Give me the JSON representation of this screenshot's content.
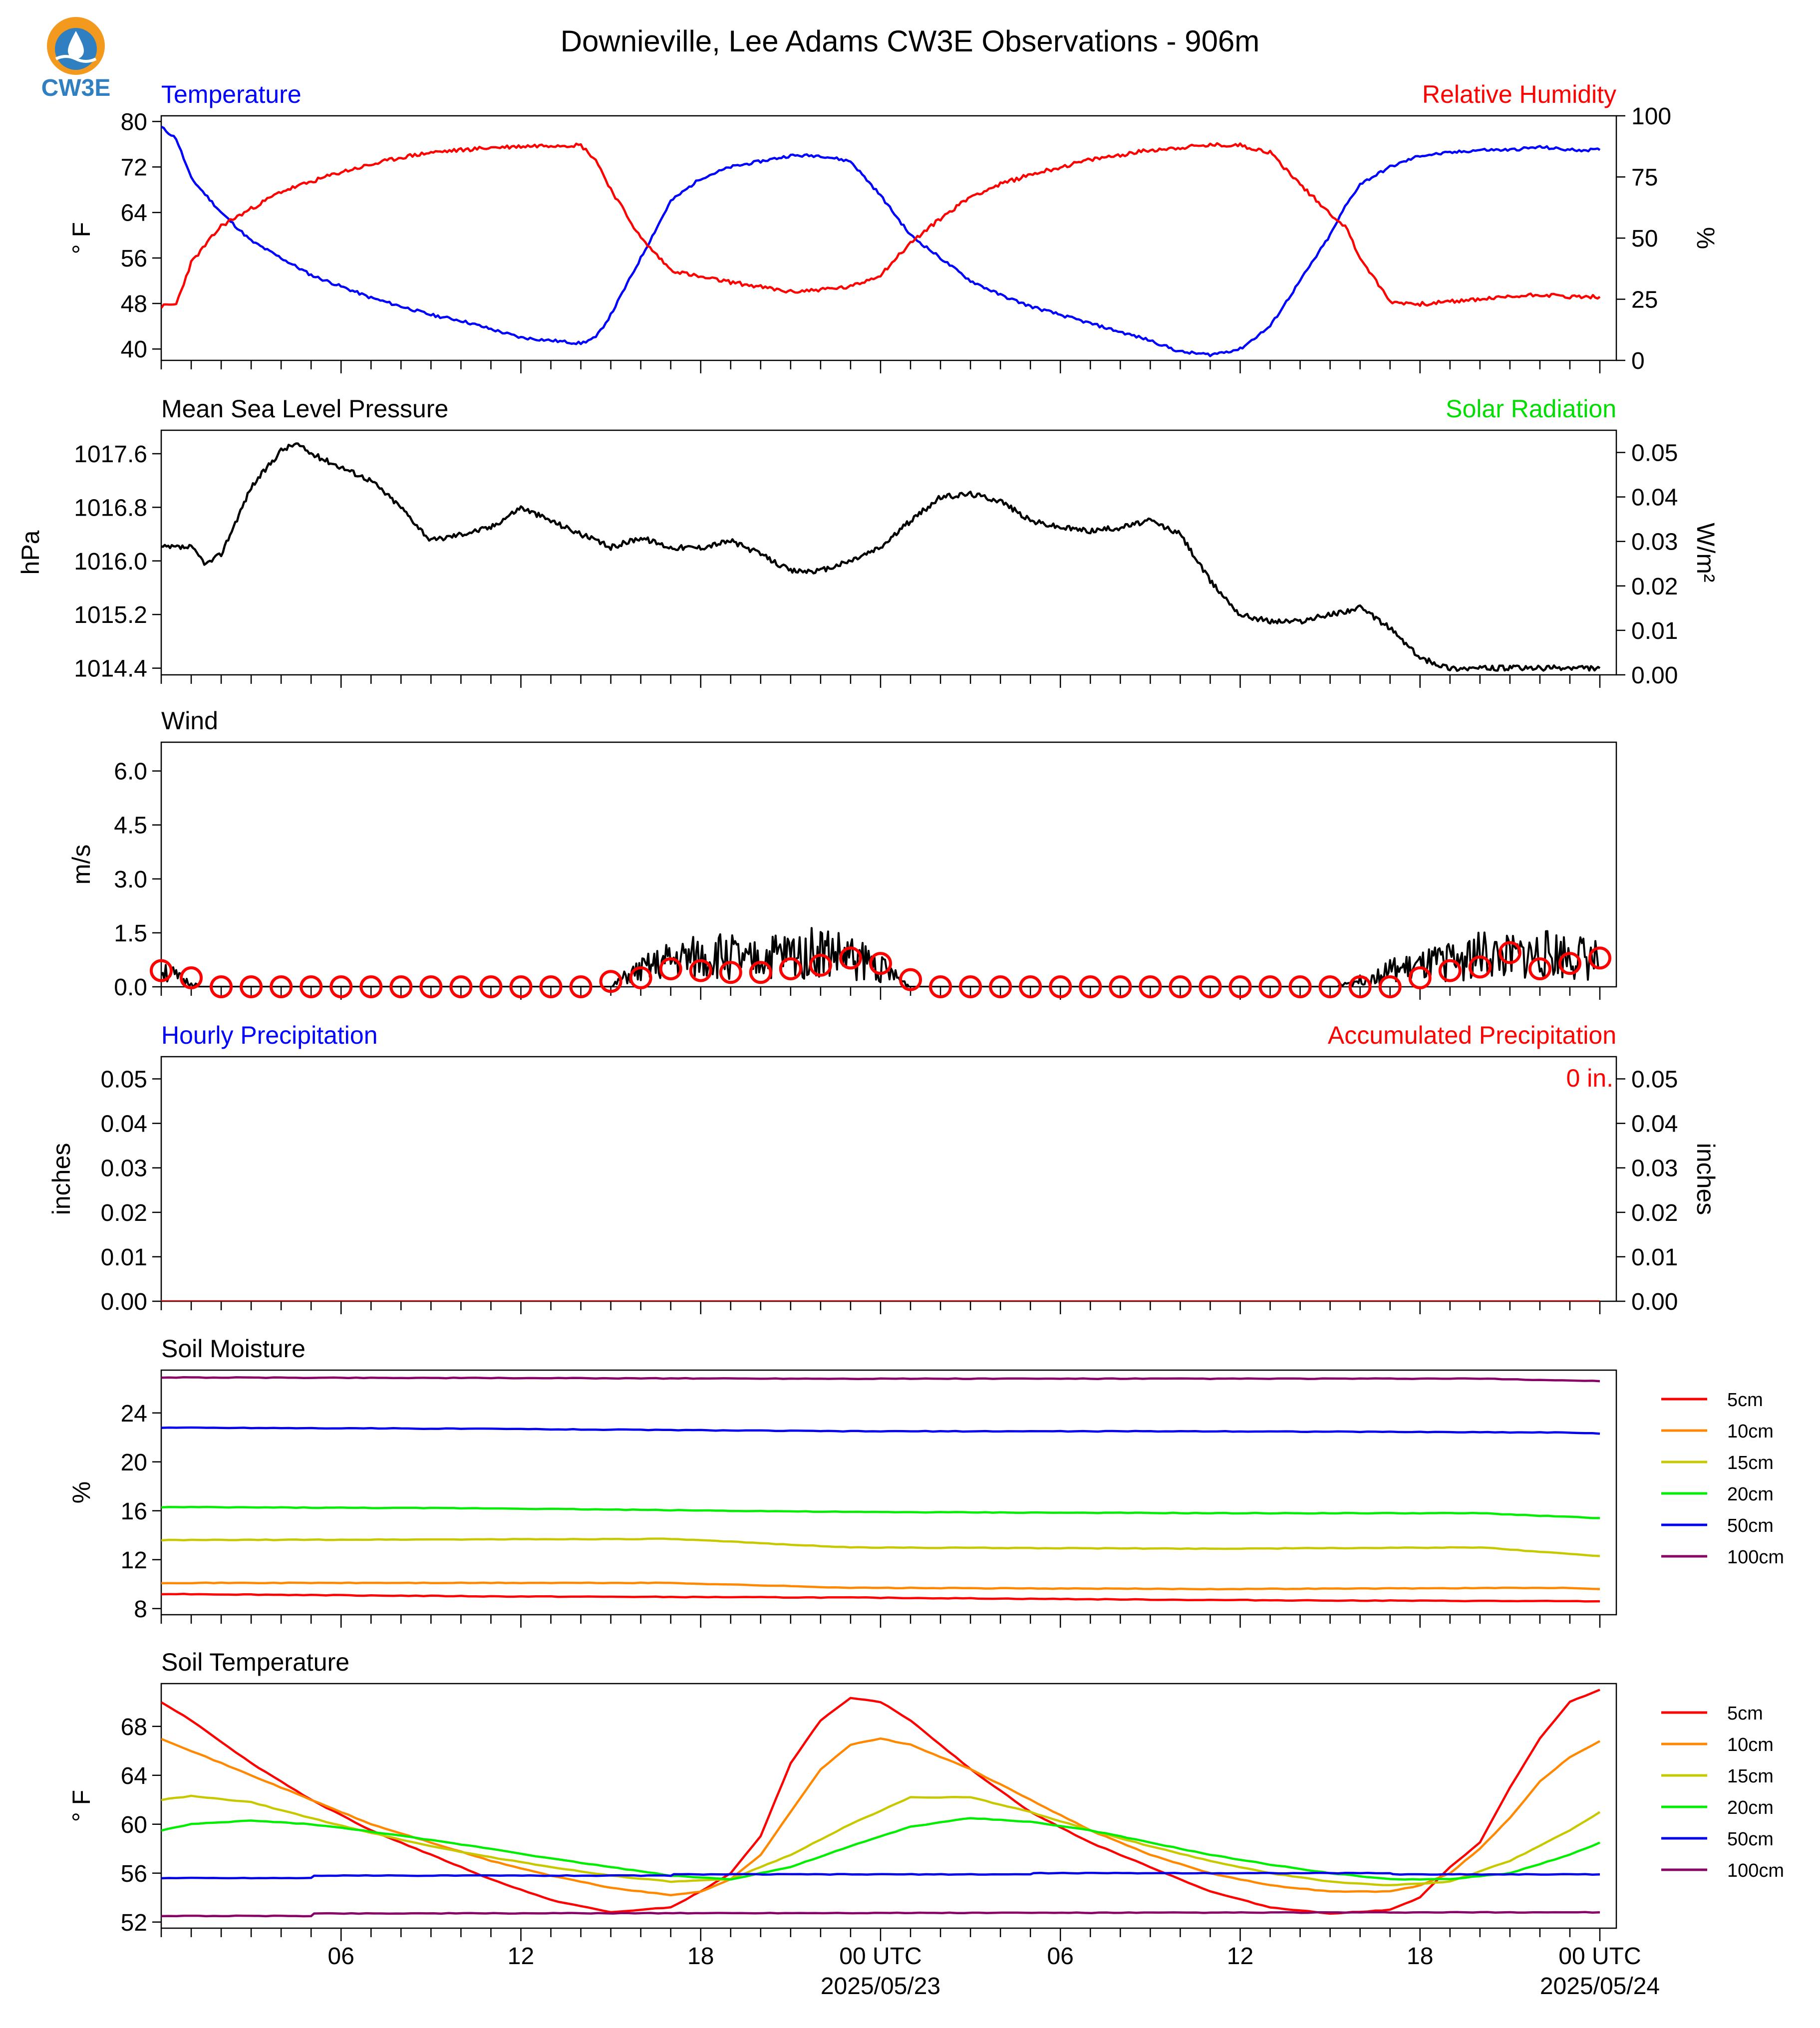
{
  "figure": {
    "title": "Downieville, Lee Adams CW3E Observations - 906m",
    "logo_text": "CW3E",
    "x_ticks": [
      "06",
      "12",
      "18",
      "00 UTC",
      "06",
      "12",
      "18",
      "00 UTC"
    ],
    "x_dates": [
      "2025/05/23",
      "2025/05/24"
    ]
  },
  "colors": {
    "temperature": "#0000ff",
    "humidity": "#ff0000",
    "pressure": "#000000",
    "solar": "#00dd00",
    "wind_gust_marker": "#ff0000",
    "soil": [
      "#ff0000",
      "#ff8800",
      "#c8c800",
      "#00ee00",
      "#0000ee",
      "#880066"
    ]
  },
  "chart_data": [
    {
      "type": "line",
      "left_title": "Temperature",
      "right_title": "Relative Humidity",
      "ylabel": "° F",
      "ylabel2": "%",
      "ylim": [
        38,
        81
      ],
      "yticks": [
        40,
        48,
        56,
        64,
        72,
        80
      ],
      "ylim2": [
        0,
        100
      ],
      "yticks2": [
        0,
        25,
        50,
        75,
        100
      ],
      "x_hours_range": [
        1,
        49
      ],
      "series": [
        {
          "name": "Temperature",
          "axis": "left",
          "x": [
            1,
            1.5,
            2,
            3,
            4,
            5,
            6,
            7,
            8,
            9,
            10,
            11,
            12,
            13,
            14,
            15,
            15.5,
            16,
            17,
            18,
            19,
            20,
            21,
            22,
            23,
            24,
            25,
            26,
            27,
            28,
            29,
            30,
            31,
            32,
            33,
            34,
            35,
            36,
            37,
            38,
            39,
            40,
            40.5,
            41,
            42,
            43,
            44,
            45,
            46,
            47,
            48,
            49
          ],
          "y": [
            79,
            77,
            70,
            64,
            59,
            56,
            53,
            51,
            49,
            47.5,
            46,
            45,
            43.5,
            42,
            41.5,
            41,
            42,
            46,
            56,
            66,
            70,
            72,
            73,
            74,
            74,
            73,
            67,
            60,
            56,
            52,
            49.5,
            47.5,
            46,
            44.5,
            43,
            41.5,
            39.5,
            39,
            40,
            44,
            52,
            60,
            65,
            69,
            72,
            74,
            74.5,
            75,
            75,
            75.5,
            75,
            75
          ]
        },
        {
          "name": "Relative Humidity",
          "axis": "right",
          "x": [
            1,
            1.5,
            2,
            3,
            4,
            5,
            6,
            7,
            8,
            9,
            10,
            11,
            12,
            13,
            14,
            15,
            15.5,
            16,
            17,
            18,
            19,
            20,
            21,
            22,
            23,
            24,
            25,
            26,
            27,
            28,
            29,
            30,
            31,
            32,
            33,
            34,
            35,
            36,
            37,
            38,
            39,
            40,
            40.5,
            41,
            42,
            43,
            44,
            45,
            46,
            47,
            48,
            49
          ],
          "y": [
            22,
            23,
            40,
            55,
            62,
            69,
            73,
            77,
            80,
            83,
            85,
            86,
            87,
            87.5,
            88,
            88,
            82,
            70,
            50,
            37,
            34,
            32,
            30,
            28,
            29,
            30,
            35,
            48,
            58,
            67,
            72,
            76,
            79,
            82,
            84,
            86,
            87,
            88,
            88,
            85,
            72,
            60,
            55,
            42,
            24,
            23,
            24,
            25,
            26,
            27,
            26,
            26
          ]
        }
      ]
    },
    {
      "type": "line",
      "left_title": "Mean Sea Level Pressure",
      "right_title": "Solar Radiation",
      "ylabel": "hPa",
      "ylabel2": "W/m²",
      "ylim": [
        1014.3,
        1017.95
      ],
      "yticks": [
        1014.4,
        1015.2,
        1016.0,
        1016.8,
        1017.6
      ],
      "ylim2": [
        0,
        0.055
      ],
      "yticks2": [
        0.0,
        0.01,
        0.02,
        0.03,
        0.04,
        0.05
      ],
      "series": [
        {
          "name": "Mean Sea Level Pressure",
          "axis": "left",
          "x": [
            1,
            2,
            2.5,
            3,
            4,
            5,
            5.5,
            6,
            7,
            8,
            9,
            10,
            11,
            12,
            13,
            14,
            15,
            16,
            17,
            18,
            19,
            20,
            21,
            22,
            23,
            24,
            25,
            26,
            27,
            28,
            29,
            30,
            31,
            32,
            33,
            34,
            35,
            36,
            37,
            38,
            39,
            40,
            41,
            42,
            43,
            44,
            45,
            46,
            47,
            48,
            49
          ],
          "y": [
            1016.2,
            1016.2,
            1015.95,
            1016.1,
            1017.1,
            1017.65,
            1017.75,
            1017.6,
            1017.4,
            1017.2,
            1016.8,
            1016.3,
            1016.4,
            1016.5,
            1016.8,
            1016.6,
            1016.4,
            1016.2,
            1016.35,
            1016.2,
            1016.2,
            1016.3,
            1016.1,
            1015.85,
            1015.85,
            1016.0,
            1016.2,
            1016.6,
            1016.95,
            1017.0,
            1016.9,
            1016.6,
            1016.5,
            1016.45,
            1016.5,
            1016.6,
            1016.4,
            1015.7,
            1015.2,
            1015.1,
            1015.1,
            1015.2,
            1015.3,
            1015.0,
            1014.55,
            1014.4,
            1014.4,
            1014.4,
            1014.4,
            1014.4,
            1014.4
          ]
        }
      ]
    },
    {
      "type": "line",
      "left_title": "Wind",
      "ylabel": "m/s",
      "ylim": [
        0,
        6.8
      ],
      "yticks": [
        0.0,
        1.5,
        3.0,
        4.5,
        6.0
      ],
      "series": [
        {
          "name": "Wind speed",
          "x": [
            1,
            1.5,
            2,
            2.5,
            3,
            4,
            5,
            6,
            7,
            8,
            9,
            10,
            11,
            12,
            13,
            14,
            15,
            16,
            16.5,
            17,
            18,
            19,
            20,
            20.5,
            21,
            22,
            23,
            24,
            24.5,
            25,
            25.5,
            26,
            27,
            28,
            29,
            30,
            31,
            32,
            33,
            34,
            35,
            36,
            37,
            38,
            39,
            40,
            41,
            42,
            43,
            44,
            45,
            46,
            47,
            48,
            49
          ],
          "y": [
            0.6,
            0.3,
            0.1,
            0.0,
            0.0,
            0,
            0,
            0,
            0,
            0,
            0,
            0,
            0,
            0,
            0,
            0,
            0,
            0,
            0.3,
            0.5,
            0.8,
            0.9,
            1.0,
            0.7,
            0.9,
            1.0,
            1.1,
            0.9,
            0.8,
            0.6,
            0.3,
            0,
            0,
            0,
            0,
            0,
            0,
            0,
            0,
            0,
            0,
            0,
            0,
            0,
            0,
            0,
            0.2,
            0.5,
            0.6,
            0.8,
            1.0,
            0.9,
            1.0,
            1.0,
            0.8
          ]
        },
        {
          "name": "Gust",
          "x": [
            1,
            2,
            3,
            4,
            5,
            6,
            7,
            8,
            9,
            10,
            11,
            12,
            13,
            14,
            15,
            16,
            17,
            18,
            19,
            20,
            21,
            22,
            23,
            24,
            25,
            26,
            27,
            28,
            29,
            30,
            31,
            32,
            33,
            34,
            35,
            36,
            37,
            38,
            39,
            40,
            41,
            42,
            43,
            44,
            45,
            46,
            47,
            48,
            49
          ],
          "y": [
            0.45,
            0.25,
            0,
            0,
            0,
            0,
            0,
            0,
            0,
            0,
            0,
            0,
            0,
            0,
            0,
            0.15,
            0.25,
            0.5,
            0.45,
            0.4,
            0.4,
            0.5,
            0.6,
            0.8,
            0.65,
            0.2,
            0,
            0,
            0,
            0,
            0,
            0,
            0,
            0,
            0,
            0,
            0,
            0,
            0,
            0,
            0,
            0,
            0.25,
            0.45,
            0.55,
            0.95,
            0.5,
            0.65,
            0.8
          ]
        }
      ]
    },
    {
      "type": "line",
      "left_title": "Hourly Precipitation",
      "right_title": "Accumulated Precipitation",
      "ylabel": "inches",
      "ylabel2": "inches",
      "ylim": [
        0,
        0.055
      ],
      "yticks": [
        0.0,
        0.01,
        0.02,
        0.03,
        0.04,
        0.05
      ],
      "annotation": "0 in.",
      "series": [
        {
          "name": "Hourly Precipitation",
          "x": [
            1,
            49
          ],
          "y": [
            0,
            0
          ]
        },
        {
          "name": "Accumulated Precipitation",
          "x": [
            1,
            49
          ],
          "y": [
            0,
            0
          ]
        }
      ]
    },
    {
      "type": "line",
      "left_title": "Soil Moisture",
      "ylabel": "%",
      "ylim": [
        7.5,
        27.5
      ],
      "yticks": [
        8,
        12,
        16,
        20,
        24
      ],
      "legend": "right",
      "series": [
        {
          "name": "5cm",
          "x": [
            1,
            12,
            24,
            36,
            48,
            49
          ],
          "y": [
            9.2,
            9.0,
            8.9,
            8.7,
            8.6,
            8.6
          ]
        },
        {
          "name": "10cm",
          "x": [
            1,
            18,
            24,
            36,
            48,
            49
          ],
          "y": [
            10.1,
            10.1,
            9.7,
            9.6,
            9.7,
            9.6
          ]
        },
        {
          "name": "15cm",
          "x": [
            1,
            18,
            24,
            36,
            45,
            49
          ],
          "y": [
            13.6,
            13.7,
            13.0,
            12.9,
            13.0,
            12.3
          ]
        },
        {
          "name": "20cm",
          "x": [
            1,
            12,
            24,
            36,
            45,
            49
          ],
          "y": [
            16.3,
            16.2,
            15.9,
            15.8,
            15.8,
            15.4
          ]
        },
        {
          "name": "50cm",
          "x": [
            1,
            12,
            24,
            36,
            48,
            49
          ],
          "y": [
            22.8,
            22.7,
            22.5,
            22.5,
            22.4,
            22.3
          ]
        },
        {
          "name": "100cm",
          "x": [
            1,
            24,
            45,
            49
          ],
          "y": [
            26.9,
            26.8,
            26.8,
            26.6
          ]
        }
      ]
    },
    {
      "type": "line",
      "left_title": "Soil Temperature",
      "ylabel": "° F",
      "ylim": [
        51.5,
        71.5
      ],
      "yticks": [
        52,
        56,
        60,
        64,
        68
      ],
      "legend": "right",
      "series": [
        {
          "name": "5cm",
          "x": [
            1,
            2,
            4,
            6,
            8,
            10,
            12,
            14,
            16,
            18,
            19,
            20,
            21,
            22,
            23,
            24,
            25,
            26,
            28,
            30,
            32,
            34,
            36,
            38,
            40,
            42,
            43,
            44,
            45,
            46,
            47,
            48,
            49
          ],
          "y": [
            70,
            68.5,
            65,
            62,
            59.5,
            57.5,
            55.5,
            53.8,
            52.8,
            53.2,
            54.5,
            56,
            59,
            65,
            68.5,
            70.3,
            70,
            68.5,
            64.5,
            61,
            58.5,
            56.5,
            54.5,
            53.2,
            52.7,
            53,
            54,
            56.5,
            58.5,
            63,
            67,
            70,
            71
          ]
        },
        {
          "name": "10cm",
          "x": [
            1,
            2,
            4,
            6,
            8,
            10,
            12,
            14,
            16,
            18,
            19,
            20,
            21,
            22,
            23,
            24,
            25,
            26,
            28,
            30,
            32,
            34,
            36,
            38,
            40,
            42,
            43,
            44,
            45,
            46,
            47,
            48,
            49
          ],
          "y": [
            67,
            66,
            64,
            62,
            60,
            58.5,
            57,
            55.8,
            54.8,
            54.2,
            54.5,
            55.5,
            57.5,
            61,
            64.5,
            66.5,
            67,
            66.5,
            64.5,
            62,
            59.5,
            57.5,
            56,
            55,
            54.5,
            54.5,
            55,
            56,
            58,
            60.5,
            63.5,
            65.5,
            66.8
          ]
        },
        {
          "name": "15cm",
          "x": [
            1,
            2,
            4,
            6,
            8,
            10,
            12,
            14,
            16,
            18,
            20,
            22,
            24,
            26,
            28,
            30,
            32,
            34,
            36,
            38,
            40,
            42,
            44,
            46,
            48,
            49
          ],
          "y": [
            62,
            62.3,
            61.8,
            60.5,
            59.3,
            58.2,
            57.3,
            56.5,
            55.8,
            55.3,
            55.5,
            57.5,
            60,
            62.2,
            62.2,
            61,
            59.5,
            58.2,
            57,
            56,
            55.3,
            55,
            55.3,
            57,
            59.5,
            61
          ]
        },
        {
          "name": "20cm",
          "x": [
            1,
            2,
            4,
            6,
            8,
            10,
            12,
            14,
            16,
            18,
            20,
            22,
            24,
            26,
            28,
            30,
            32,
            34,
            36,
            38,
            40,
            42,
            44,
            46,
            48,
            49
          ],
          "y": [
            59.5,
            60,
            60.3,
            60,
            59.4,
            58.7,
            58,
            57.2,
            56.5,
            55.8,
            55.5,
            56.5,
            58.2,
            59.8,
            60.5,
            60.2,
            59.5,
            58.5,
            57.5,
            56.7,
            56,
            55.5,
            55.5,
            56,
            57.5,
            58.5
          ]
        },
        {
          "name": "50cm",
          "x": [
            1,
            6,
            6.1,
            18,
            18.1,
            30,
            30.1,
            42,
            42.1,
            49
          ],
          "y": [
            55.6,
            55.6,
            55.8,
            55.8,
            55.9,
            55.9,
            56.0,
            56.0,
            55.9,
            55.9
          ]
        },
        {
          "name": "100cm",
          "x": [
            1,
            6,
            6.1,
            49
          ],
          "y": [
            52.5,
            52.5,
            52.7,
            52.8
          ]
        }
      ]
    }
  ]
}
